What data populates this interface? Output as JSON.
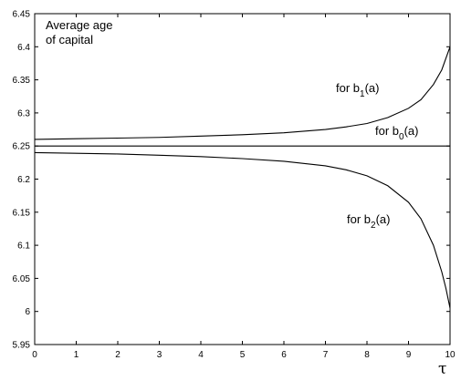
{
  "chart_data": {
    "type": "line",
    "xlim": [
      0,
      10
    ],
    "ylim": [
      5.95,
      6.45
    ],
    "x_ticks": [
      "0",
      "1",
      "2",
      "3",
      "4",
      "5",
      "6",
      "7",
      "8",
      "9",
      "10"
    ],
    "y_ticks": [
      "5.95",
      "6",
      "6.05",
      "6.1",
      "6.15",
      "6.2",
      "6.25",
      "6.3",
      "6.35",
      "6.4",
      "6.45"
    ],
    "xlabel": "τ",
    "ylabel": "",
    "grid": false,
    "legend": "none",
    "title_line1": "Average age",
    "title_line2": "of capital",
    "series": [
      {
        "name": "for b1(a)",
        "label_prefix": "for b",
        "label_sub": "1",
        "label_suffix": "(a)",
        "x": [
          0,
          1,
          2,
          3,
          4,
          5,
          6,
          7,
          7.5,
          8,
          8.5,
          9,
          9.3,
          9.6,
          9.8,
          10
        ],
        "y": [
          6.26,
          6.261,
          6.262,
          6.263,
          6.265,
          6.267,
          6.27,
          6.275,
          6.279,
          6.284,
          6.293,
          6.307,
          6.32,
          6.343,
          6.365,
          6.4
        ]
      },
      {
        "name": "for b0(a)",
        "label_prefix": "for b",
        "label_sub": "0",
        "label_suffix": "(a)",
        "x": [
          0,
          10
        ],
        "y": [
          6.25,
          6.25
        ]
      },
      {
        "name": "for b2(a)",
        "label_prefix": "for b",
        "label_sub": "2",
        "label_suffix": "(a)",
        "x": [
          0,
          1,
          2,
          3,
          4,
          5,
          6,
          7,
          7.5,
          8,
          8.5,
          9,
          9.3,
          9.6,
          9.8,
          9.9,
          10
        ],
        "y": [
          6.24,
          6.239,
          6.238,
          6.236,
          6.234,
          6.231,
          6.227,
          6.22,
          6.214,
          6.205,
          6.19,
          6.165,
          6.14,
          6.1,
          6.06,
          6.035,
          6.005
        ]
      }
    ]
  }
}
